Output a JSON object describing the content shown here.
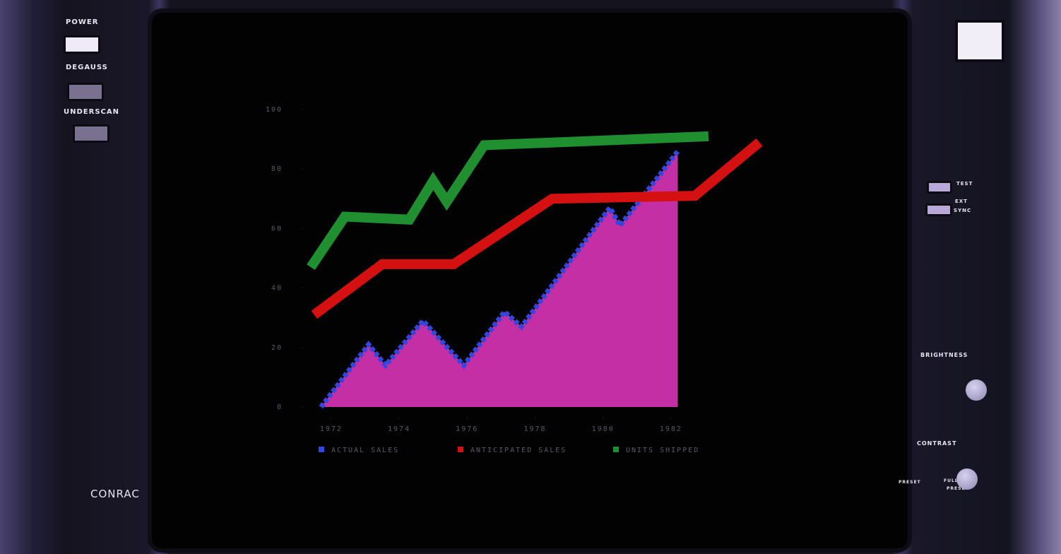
{
  "monitor": {
    "brand": "CONRAC",
    "power": "POWER",
    "degauss": "DEGAUSS",
    "underscan": "UNDERSCAN",
    "test": "TEST",
    "ext_sync": [
      "EXT",
      "SYNC"
    ],
    "brightness": "BRIGHTNESS",
    "contrast": "CONTRAST",
    "preset": "PRESET",
    "full_preset": [
      "FULL",
      "PRESET"
    ]
  },
  "chart_data": {
    "type": "line",
    "xlim": [
      1971.4,
      1984.6
    ],
    "xticks": [
      1972,
      1974,
      1976,
      1978,
      1980,
      1982
    ],
    "ylim": [
      0,
      100
    ],
    "yticks": [
      0,
      20,
      40,
      60,
      80,
      100
    ],
    "series": [
      {
        "name": "ACTUAL SALES",
        "kind": "area",
        "color": "#c42fa6",
        "edge_color": "#3346e0",
        "x": [
          1971.7,
          1973.1,
          1973.6,
          1974.7,
          1975.9,
          1977.1,
          1977.6,
          1980.2,
          1980.5,
          1981.6,
          1982.2
        ],
        "values": [
          0,
          21,
          14,
          29,
          14,
          32,
          27,
          67,
          61,
          77,
          86
        ]
      },
      {
        "name": "ANTICIPATED SALES",
        "kind": "line",
        "color": "#d41010",
        "x": [
          1971.5,
          1973.5,
          1975.6,
          1978.5,
          1982.7,
          1984.6
        ],
        "values": [
          31,
          48,
          48,
          70,
          71,
          89
        ]
      },
      {
        "name": "UNITS SHIPPED",
        "kind": "line",
        "color": "#1f8f30",
        "x": [
          1971.4,
          1972.4,
          1974.3,
          1975.0,
          1975.4,
          1976.5,
          1983.1
        ],
        "values": [
          47,
          64,
          63,
          76,
          69,
          88,
          91
        ]
      }
    ]
  }
}
